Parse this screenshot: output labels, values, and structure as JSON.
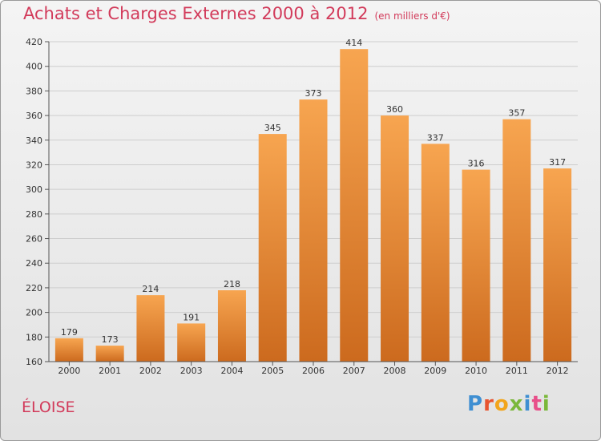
{
  "header": {
    "title": "Achats et Charges Externes 2000 à 2012",
    "unit": "(en milliers d'€)"
  },
  "footer": {
    "commune": "ÉLOISE",
    "brand": "Proxiti"
  },
  "colors": {
    "title": "#d23a5a",
    "bar_top": "#f7a550",
    "bar_bottom": "#cc6a1e",
    "brand_letters": [
      "#3f8fd2",
      "#e8542f",
      "#f2a51c",
      "#7bb83a",
      "#3f8fd2",
      "#e84f8a",
      "#7bb83a"
    ]
  },
  "chart_data": {
    "type": "bar",
    "title": "Achats et Charges Externes 2000 à 2012",
    "subtitle": "(en milliers d'€)",
    "xlabel": "",
    "ylabel": "",
    "categories": [
      "2000",
      "2001",
      "2002",
      "2003",
      "2004",
      "2005",
      "2006",
      "2007",
      "2008",
      "2009",
      "2010",
      "2011",
      "2012"
    ],
    "values": [
      179,
      173,
      214,
      191,
      218,
      345,
      373,
      414,
      360,
      337,
      316,
      357,
      317
    ],
    "ylim": [
      160,
      420
    ],
    "yticks": [
      160,
      180,
      200,
      220,
      240,
      260,
      280,
      300,
      320,
      340,
      360,
      380,
      400,
      420
    ],
    "grid": true,
    "legend": "none"
  }
}
